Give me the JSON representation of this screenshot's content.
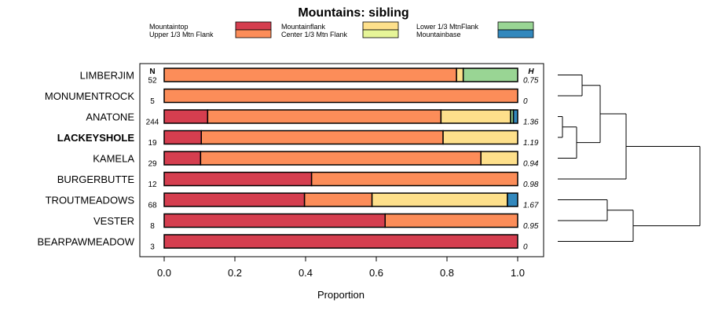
{
  "chart_data": {
    "type": "bar",
    "orientation": "horizontal",
    "stacked": true,
    "title": "Mountains: sibling",
    "xlabel": "Proportion",
    "ylabel": "",
    "xlim": [
      0,
      1
    ],
    "xticks": [
      "0.0",
      "0.2",
      "0.4",
      "0.6",
      "0.8",
      "1.0"
    ],
    "n_header": "N",
    "h_header": "H",
    "legend_position": "top",
    "legend": [
      {
        "name": "Mountaintop",
        "color": "#d53e4f"
      },
      {
        "name": "Upper 1/3 Mtn Flank",
        "color": "#fc8d59"
      },
      {
        "name": "Mountainflank",
        "color": "#fee08b"
      },
      {
        "name": "Center 1/3 Mtn Flank",
        "color": "#e6f598"
      },
      {
        "name": "Lower 1/3 MtnFlank",
        "color": "#99d594"
      },
      {
        "name": "Mountainbase",
        "color": "#3288bd"
      }
    ],
    "categories": [
      {
        "label": "LIMBERJIM",
        "n": "52",
        "h": "0.75",
        "bold": false,
        "values": [
          0,
          0.827,
          0.019,
          0,
          0.154,
          0
        ]
      },
      {
        "label": "MONUMENTROCK",
        "n": "5",
        "h": "0",
        "bold": false,
        "values": [
          0,
          1.0,
          0,
          0,
          0,
          0
        ]
      },
      {
        "label": "ANATONE",
        "n": "244",
        "h": "1.36",
        "bold": false,
        "values": [
          0.123,
          0.66,
          0.197,
          0,
          0.008,
          0.012
        ]
      },
      {
        "label": "LACKEYSHOLE",
        "n": "19",
        "h": "1.19",
        "bold": true,
        "values": [
          0.105,
          0.684,
          0.211,
          0,
          0,
          0
        ]
      },
      {
        "label": "KAMELA",
        "n": "29",
        "h": "0.94",
        "bold": false,
        "values": [
          0.103,
          0.793,
          0.104,
          0,
          0,
          0
        ]
      },
      {
        "label": "BURGERBUTTE",
        "n": "12",
        "h": "0.98",
        "bold": false,
        "values": [
          0.417,
          0.583,
          0,
          0,
          0,
          0
        ]
      },
      {
        "label": "TROUTMEADOWS",
        "n": "68",
        "h": "1.67",
        "bold": false,
        "values": [
          0.397,
          0.191,
          0.383,
          0,
          0,
          0.029
        ]
      },
      {
        "label": "VESTER",
        "n": "8",
        "h": "0.95",
        "bold": false,
        "values": [
          0.625,
          0.375,
          0,
          0,
          0,
          0
        ]
      },
      {
        "label": "BEARPAWMEADOW",
        "n": "3",
        "h": "0",
        "bold": false,
        "values": [
          1.0,
          0,
          0,
          0,
          0,
          0
        ]
      }
    ],
    "dendrogram": {
      "description": "hierarchical clustering of the rows",
      "clusters": [
        [
          [
            "LIMBERJIM",
            "MONUMENTROCK"
          ],
          [
            [
              "ANATONE",
              "LACKEYSHOLE"
            ],
            "KAMELA"
          ],
          "BURGERBUTTE"
        ],
        [
          [
            "TROUTMEADOWS",
            "VESTER"
          ],
          "BEARPAWMEADOW"
        ]
      ]
    }
  }
}
